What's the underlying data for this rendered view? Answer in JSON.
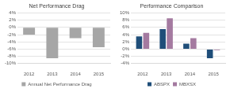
{
  "chart_data": [
    {
      "type": "bar",
      "title": "Net Performance Drag",
      "categories": [
        "2012",
        "2013",
        "2014",
        "2015"
      ],
      "series": [
        {
          "name": "Annual Net Performance Drag",
          "color": "#a6a6a6",
          "values": [
            -2,
            -8.5,
            -3,
            -5.5
          ]
        }
      ],
      "ylim": [
        -10,
        4
      ],
      "yticks": [
        {
          "value": -10,
          "label": "-10%"
        },
        {
          "value": -8,
          "label": "-8%"
        },
        {
          "value": -6,
          "label": "-6%"
        },
        {
          "value": -4,
          "label": "-4%"
        },
        {
          "value": -2,
          "label": "-2%"
        },
        {
          "value": 0,
          "label": "0%"
        },
        {
          "value": 2,
          "label": "2%"
        },
        {
          "value": 4,
          "label": "4%"
        }
      ],
      "grid": true,
      "legend": "bottom"
    },
    {
      "type": "bar",
      "title": "Performance Comparison",
      "categories": [
        "2012",
        "2013",
        "2014",
        "2015"
      ],
      "series": [
        {
          "name": "ABSPX",
          "color": "#1f4e79",
          "values": [
            3.5,
            5.5,
            1.5,
            -2.5
          ]
        },
        {
          "name": "MBXSX",
          "color": "#a47aa0",
          "values": [
            4.5,
            8.5,
            3,
            -0.3
          ]
        }
      ],
      "ylim": [
        -4,
        10
      ],
      "yticks": [
        {
          "value": -4,
          "label": "-4%"
        },
        {
          "value": -2,
          "label": "-2%"
        },
        {
          "value": 0,
          "label": "0%"
        },
        {
          "value": 2,
          "label": "2%"
        },
        {
          "value": 4,
          "label": "4%"
        },
        {
          "value": 6,
          "label": "6%"
        },
        {
          "value": 8,
          "label": "8%"
        },
        {
          "value": 10,
          "label": "10%"
        }
      ],
      "grid": true,
      "legend": "bottom"
    }
  ]
}
